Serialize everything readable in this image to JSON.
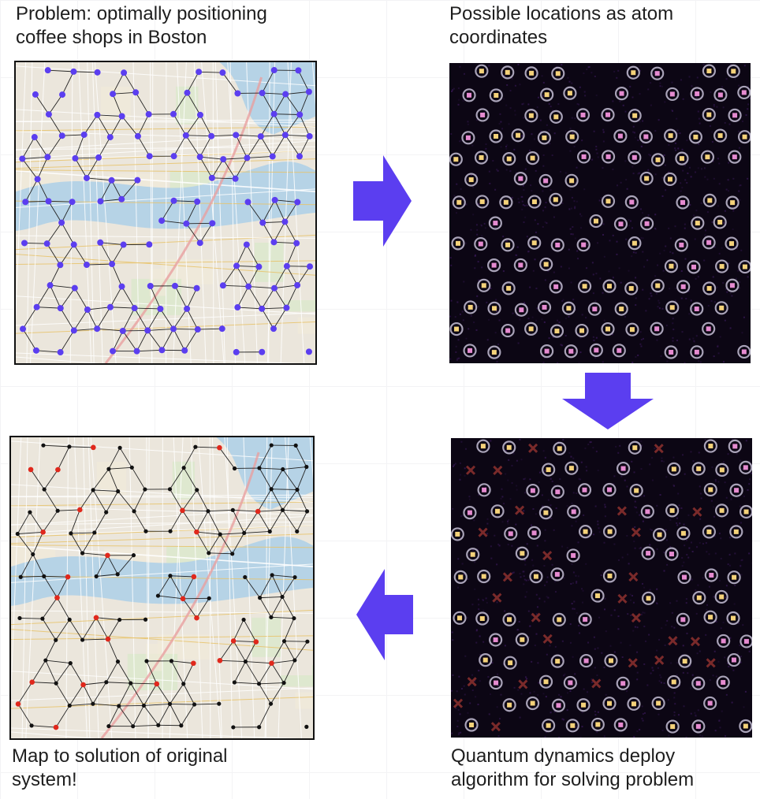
{
  "captions": {
    "problem": [
      "Problem: optimally positioning",
      "coffee shops in Boston"
    ],
    "locations": [
      "Possible locations as atom",
      "coordinates"
    ],
    "solution": [
      "Map to solution of original",
      "system!"
    ],
    "dynamics": [
      "Quantum dynamics deploy",
      "algorithm for solving problem"
    ]
  },
  "colors": {
    "arrow": "#5b3ef0",
    "node_blue": "#5b3ef0",
    "node_red": "#e0281c",
    "node_black": "#111111",
    "edge": "#222222",
    "atom_ring": "#a9a3b8",
    "atom_cross": "#7a2a2a",
    "atom_bg": "#0c0614",
    "river": "#b6d3e6"
  },
  "icons": {
    "arrow_right": "right-arrow-icon",
    "arrow_down": "down-arrow-icon",
    "arrow_left": "left-arrow-icon"
  }
}
